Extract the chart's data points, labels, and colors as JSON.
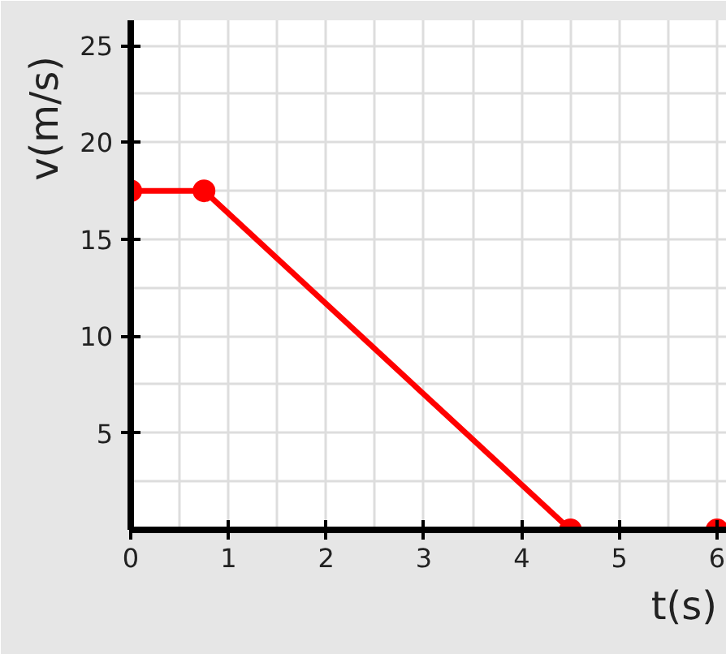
{
  "chart_data": {
    "type": "line",
    "xlabel": "t(s)",
    "ylabel": "v(m/s)",
    "x": [
      0,
      0.75,
      4.5,
      6
    ],
    "series": [
      {
        "color": "#ff0000",
        "values": [
          17.5,
          17.5,
          0,
          0
        ]
      }
    ],
    "xlim": [
      0,
      6.1
    ],
    "ylim": [
      0,
      26.3
    ],
    "xticks": [
      0,
      1,
      2,
      3,
      4,
      5,
      6
    ],
    "yticks": [
      5,
      10,
      15,
      20,
      25
    ],
    "grid": true,
    "marker": "circle",
    "line_style": "solid"
  }
}
